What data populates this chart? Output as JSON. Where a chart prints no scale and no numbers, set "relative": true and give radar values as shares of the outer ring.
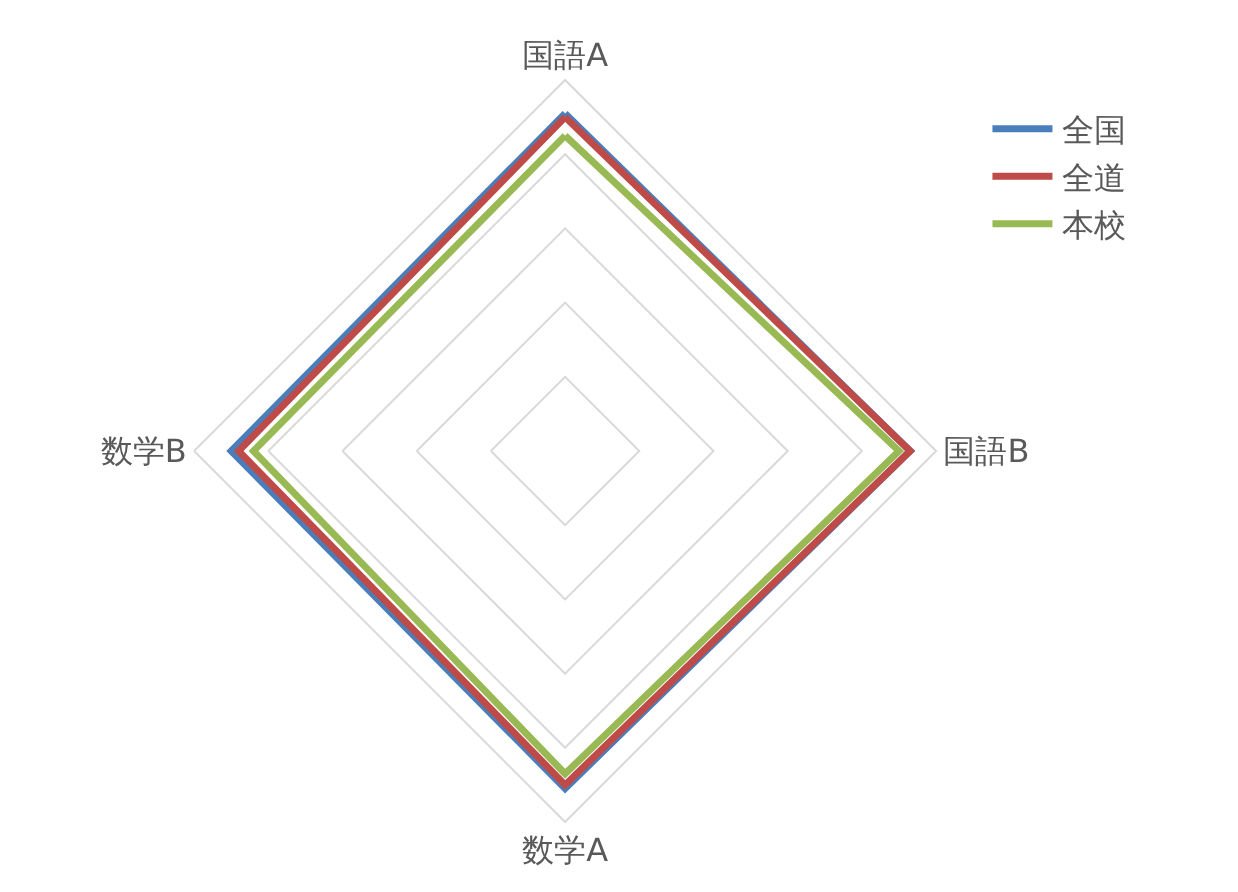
{
  "chart_data": {
    "type": "radar",
    "relative": true,
    "categories": [
      "国語A",
      "国語B",
      "数学A",
      "数学B"
    ],
    "series": [
      {
        "name": "全国",
        "color": "#4a7ebb",
        "values": [
          0.91,
          0.93,
          0.91,
          0.9
        ]
      },
      {
        "name": "全道",
        "color": "#be4b48",
        "values": [
          0.9,
          0.93,
          0.9,
          0.88
        ]
      },
      {
        "name": "本校",
        "color": "#98b954",
        "values": [
          0.85,
          0.9,
          0.87,
          0.84
        ]
      }
    ],
    "grid": true,
    "legend": "top right",
    "marker": "none"
  }
}
